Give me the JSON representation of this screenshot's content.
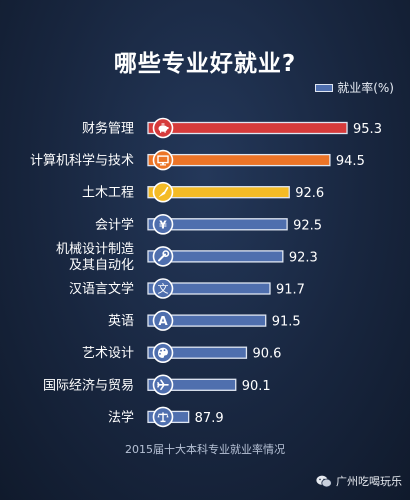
{
  "footer": "2015届十大本科专业就业率情况",
  "watermark": "广州吃喝玩乐",
  "chart_data": {
    "type": "bar",
    "orientation": "horizontal",
    "title": "哪些专业好就业?",
    "legend": {
      "label": "就业率(%)",
      "placement": "top-right"
    },
    "xlim": [
      86,
      96
    ],
    "grid": false,
    "categories": [
      [
        "财务管理"
      ],
      [
        "计算机科学与技术"
      ],
      [
        "土木工程"
      ],
      [
        "会计学"
      ],
      [
        "机械设计制造",
        "及其自动化"
      ],
      [
        "汉语言文学"
      ],
      [
        "英语"
      ],
      [
        "艺术设计"
      ],
      [
        "国际经济与贸易"
      ],
      [
        "法学"
      ]
    ],
    "values": [
      95.3,
      94.5,
      92.6,
      92.5,
      92.3,
      91.7,
      91.5,
      90.6,
      90.1,
      87.9
    ],
    "value_labels": [
      "95.3",
      "94.5",
      "92.6",
      "92.5",
      "92.3",
      "91.7",
      "91.5",
      "90.6",
      "90.1",
      "87.9"
    ],
    "icons": [
      "piggy-bank-icon",
      "monitor-icon",
      "trowel-icon",
      "yen-icon",
      "wrench-icon",
      "wen-character-icon",
      "letter-a-icon",
      "palette-icon",
      "airplane-icon",
      "scales-icon"
    ],
    "colors": [
      "#d63b3b",
      "#ec7427",
      "#f4bb26",
      "#4f6fae",
      "#4f6fae",
      "#4f6fae",
      "#4f6fae",
      "#4f6fae",
      "#4f6fae",
      "#4f6fae"
    ],
    "border_color": "#dfe6f2"
  }
}
